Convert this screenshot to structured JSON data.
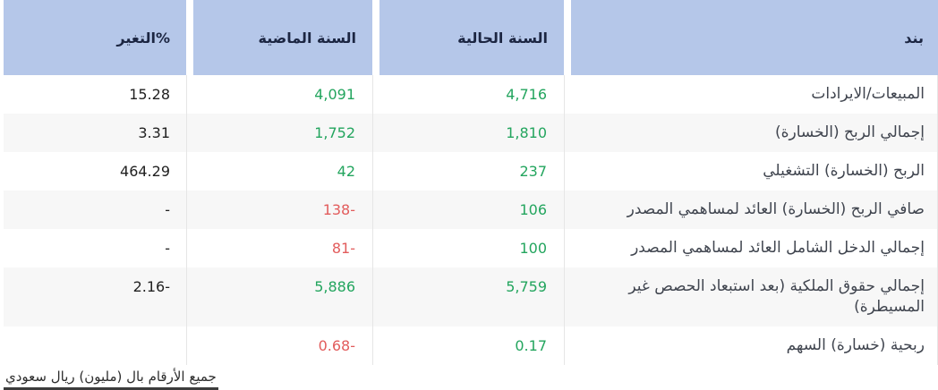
{
  "colors": {
    "header_bg": "#b5c7e9",
    "header_text": "#1c2642",
    "row_alt_bg": "#f7f7f7",
    "positive": "#23a55e",
    "negative": "#e25c5c",
    "change_text": "#212121",
    "item_text": "#40454f",
    "footer_text": "#2d2d2d"
  },
  "table": {
    "columns": [
      {
        "id": "item",
        "label": "بند"
      },
      {
        "id": "current_year",
        "label": "السنة الحالية"
      },
      {
        "id": "previous_year",
        "label": "السنة الماضية"
      },
      {
        "id": "change_pct",
        "label": "التغير%"
      }
    ],
    "rows": [
      {
        "item": "المبيعات/الايرادات",
        "current": {
          "text": "4,716",
          "tone": "positive"
        },
        "previous": {
          "text": "4,091",
          "tone": "positive"
        },
        "change": "15.28"
      },
      {
        "item": "إجمالي الربح (الخسارة)",
        "current": {
          "text": "1,810",
          "tone": "positive"
        },
        "previous": {
          "text": "1,752",
          "tone": "positive"
        },
        "change": "3.31"
      },
      {
        "item": "الربح (الخسارة) التشغيلي",
        "current": {
          "text": "237",
          "tone": "positive"
        },
        "previous": {
          "text": "42",
          "tone": "positive"
        },
        "change": "464.29"
      },
      {
        "item": "صافي الربح (الخسارة) العائد لمساهمي المصدر",
        "current": {
          "text": "106",
          "tone": "positive"
        },
        "previous": {
          "text": "138-",
          "tone": "negative"
        },
        "change": "-"
      },
      {
        "item": "إجمالي الدخل الشامل العائد لمساهمي المصدر",
        "current": {
          "text": "100",
          "tone": "positive"
        },
        "previous": {
          "text": "81-",
          "tone": "negative"
        },
        "change": "-"
      },
      {
        "item": "إجمالي حقوق الملكية (بعد استبعاد الحصص غير المسيطرة)",
        "current": {
          "text": "5,759",
          "tone": "positive"
        },
        "previous": {
          "text": "5,886",
          "tone": "positive"
        },
        "change": "2.16-"
      },
      {
        "item": "ربحية (خسارة) السهم",
        "current": {
          "text": "0.17",
          "tone": "positive"
        },
        "previous": {
          "text": "0.68-",
          "tone": "negative"
        },
        "change": ""
      }
    ]
  },
  "footer": {
    "note": "جميع الأرقام بال (مليون) ريال سعودي"
  }
}
